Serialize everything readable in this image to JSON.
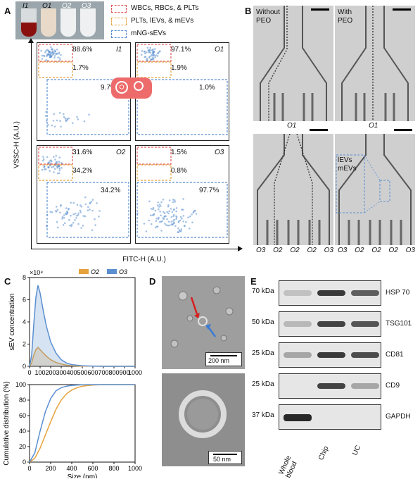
{
  "panels": {
    "A": "A",
    "B": "B",
    "C": "C",
    "D": "D",
    "E": "E"
  },
  "panelA": {
    "tubes": [
      "I1",
      "O1",
      "O2",
      "O3"
    ],
    "legend": [
      {
        "label": "WBCs, RBCs, & PLTs",
        "color": "#e05a5a"
      },
      {
        "label": "PLTs, lEVs, & mEVs",
        "color": "#e6a23c"
      },
      {
        "label": "mNG-sEVs",
        "color": "#5b8fd0"
      }
    ],
    "ylabel": "VSSC-H (A.U.)",
    "xlabel": "FITC-H (A.U.)",
    "plots": [
      {
        "tag": "I1",
        "top": "88.6%",
        "mid": "1.7%",
        "bottom": "9.7%"
      },
      {
        "tag": "O1",
        "top": "97.1%",
        "mid": "1.9%",
        "bottom": "1.0%"
      },
      {
        "tag": "O2",
        "top": "31.6%",
        "mid": "34.2%",
        "bottom": "34.2%"
      },
      {
        "tag": "O3",
        "top": "1.5%",
        "mid": "0.8%",
        "bottom": "97.7%"
      }
    ]
  },
  "panelB": {
    "without": "Without PEO",
    "with": "With PEO",
    "o1": "O1",
    "inset_label1": "lEVs",
    "inset_label2": "mEVs",
    "outlets": [
      "O3",
      "O2",
      "O2",
      "O2",
      "O3"
    ]
  },
  "chart_data": [
    {
      "type": "line",
      "legend": [
        "O2",
        "O3"
      ],
      "ylabel": "sEV concentration",
      "y_exponent": "×10⁸",
      "ylim": [
        0,
        8
      ],
      "xlim": [
        0,
        1000
      ],
      "yticks": [
        0,
        2,
        4,
        6,
        8
      ],
      "xticks": [
        0,
        100,
        200,
        300,
        400,
        500,
        600,
        700,
        800,
        900,
        1000
      ],
      "series": [
        {
          "name": "O2",
          "color": "#e6a23c",
          "x": [
            0,
            20,
            40,
            60,
            80,
            100,
            130,
            160,
            200,
            250,
            300,
            350,
            400,
            500,
            600,
            700,
            800,
            900,
            1000
          ],
          "y": [
            0,
            0.3,
            1.0,
            1.5,
            1.7,
            1.5,
            1.2,
            0.9,
            0.6,
            0.35,
            0.2,
            0.1,
            0.05,
            0.02,
            0.01,
            0,
            0,
            0,
            0
          ]
        },
        {
          "name": "O3",
          "color": "#5b8fd0",
          "x": [
            0,
            20,
            40,
            60,
            80,
            100,
            130,
            160,
            200,
            250,
            300,
            350,
            400,
            500,
            600,
            700,
            800,
            900,
            1000
          ],
          "y": [
            0,
            1.0,
            3.8,
            6.2,
            7.3,
            6.6,
            5.0,
            3.6,
            2.2,
            1.2,
            0.6,
            0.3,
            0.15,
            0.05,
            0.02,
            0,
            0,
            0,
            0
          ]
        }
      ]
    },
    {
      "type": "line",
      "ylabel": "Cumulative distribution (%)",
      "xlabel": "Size (nm)",
      "ylim": [
        0,
        100
      ],
      "xlim": [
        0,
        1000
      ],
      "yticks": [
        0,
        20,
        40,
        60,
        80,
        100
      ],
      "xticks": [
        0,
        200,
        400,
        600,
        800,
        1000
      ],
      "series": [
        {
          "name": "O2",
          "color": "#e6a23c",
          "x": [
            0,
            50,
            100,
            150,
            200,
            250,
            300,
            350,
            400,
            450,
            500,
            600,
            700,
            1000
          ],
          "y": [
            0,
            5,
            18,
            35,
            52,
            68,
            80,
            88,
            93,
            96,
            98,
            99.5,
            100,
            100
          ]
        },
        {
          "name": "O3",
          "color": "#5b8fd0",
          "x": [
            0,
            50,
            100,
            150,
            200,
            250,
            300,
            350,
            400,
            500,
            600,
            1000
          ],
          "y": [
            0,
            12,
            40,
            65,
            82,
            92,
            96,
            98,
            99,
            99.8,
            100,
            100
          ]
        }
      ]
    }
  ],
  "panelD": {
    "scale1": "200 nm",
    "scale2": "50 nm"
  },
  "panelE": {
    "rows": [
      {
        "kda": "70 kDa",
        "protein": "HSP 70"
      },
      {
        "kda": "50 kDa",
        "protein": "TSG101"
      },
      {
        "kda": "25 kDa",
        "protein": "CD81"
      },
      {
        "kda": "25 kDa",
        "protein": "CD9"
      },
      {
        "kda": "37 kDa",
        "protein": "GAPDH"
      }
    ],
    "lanes": [
      "Whole blood",
      "Chip",
      "UC"
    ]
  }
}
